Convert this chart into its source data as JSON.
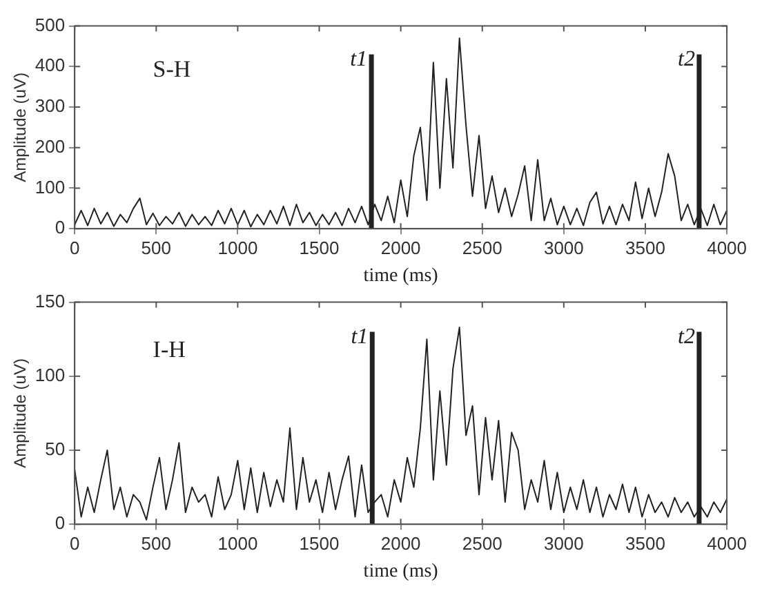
{
  "chart_data": [
    {
      "type": "line",
      "xlabel": "time (ms)",
      "ylabel": "Amplitude (uV)",
      "annotations": [
        "S-H"
      ],
      "xlim": [
        0,
        4000
      ],
      "xticks": [
        0,
        500,
        1000,
        1500,
        2000,
        2500,
        3000,
        3500,
        4000
      ],
      "ylim": [
        0,
        500
      ],
      "yticks": [
        0,
        100,
        200,
        300,
        400,
        500
      ],
      "grid": false,
      "legend": false,
      "marker": "none",
      "x": [
        0,
        40,
        80,
        120,
        160,
        200,
        240,
        280,
        320,
        360,
        400,
        440,
        480,
        520,
        560,
        600,
        640,
        680,
        720,
        760,
        800,
        840,
        880,
        920,
        960,
        1000,
        1040,
        1080,
        1120,
        1160,
        1200,
        1240,
        1280,
        1320,
        1360,
        1400,
        1440,
        1480,
        1520,
        1560,
        1600,
        1640,
        1680,
        1720,
        1760,
        1800,
        1840,
        1880,
        1920,
        1960,
        2000,
        2040,
        2080,
        2120,
        2160,
        2200,
        2240,
        2280,
        2320,
        2360,
        2400,
        2440,
        2480,
        2520,
        2560,
        2600,
        2640,
        2680,
        2720,
        2760,
        2800,
        2840,
        2880,
        2920,
        2960,
        3000,
        3040,
        3080,
        3120,
        3160,
        3200,
        3240,
        3280,
        3320,
        3360,
        3400,
        3440,
        3480,
        3520,
        3560,
        3600,
        3640,
        3680,
        3720,
        3760,
        3800,
        3840,
        3880,
        3920,
        3960,
        4000
      ],
      "series": [
        {
          "color": "#222222",
          "values": [
            10,
            45,
            8,
            50,
            12,
            40,
            6,
            35,
            15,
            50,
            75,
            10,
            38,
            8,
            30,
            12,
            40,
            6,
            35,
            10,
            30,
            8,
            45,
            12,
            50,
            10,
            45,
            5,
            35,
            10,
            45,
            12,
            55,
            8,
            60,
            15,
            40,
            8,
            35,
            10,
            40,
            8,
            50,
            15,
            55,
            10,
            60,
            20,
            80,
            15,
            120,
            30,
            180,
            250,
            70,
            410,
            100,
            370,
            150,
            470,
            255,
            80,
            230,
            50,
            130,
            40,
            100,
            30,
            85,
            155,
            20,
            170,
            20,
            75,
            10,
            55,
            10,
            50,
            8,
            65,
            90,
            12,
            55,
            10,
            60,
            20,
            115,
            25,
            100,
            30,
            90,
            185,
            130,
            20,
            60,
            10,
            50,
            8,
            60,
            10,
            45
          ]
        },
        {
          "name": "t1",
          "color": "#222222",
          "x": [
            1820,
            1820
          ],
          "values": [
            0,
            430
          ]
        },
        {
          "name": "t2",
          "color": "#222222",
          "x": [
            3830,
            3830
          ],
          "values": [
            0,
            430
          ]
        }
      ]
    },
    {
      "type": "line",
      "xlabel": "time (ms)",
      "ylabel": "Amplitude (uV)",
      "annotations": [
        "I-H"
      ],
      "xlim": [
        0,
        4000
      ],
      "xticks": [
        0,
        500,
        1000,
        1500,
        2000,
        2500,
        3000,
        3500,
        4000
      ],
      "ylim": [
        0,
        150
      ],
      "yticks": [
        0,
        50,
        100,
        150
      ],
      "grid": false,
      "legend": false,
      "marker": "none",
      "x": [
        0,
        40,
        80,
        120,
        160,
        200,
        240,
        280,
        320,
        360,
        400,
        440,
        480,
        520,
        560,
        600,
        640,
        680,
        720,
        760,
        800,
        840,
        880,
        920,
        960,
        1000,
        1040,
        1080,
        1120,
        1160,
        1200,
        1240,
        1280,
        1320,
        1360,
        1400,
        1440,
        1480,
        1520,
        1560,
        1600,
        1640,
        1680,
        1720,
        1760,
        1800,
        1840,
        1880,
        1920,
        1960,
        2000,
        2040,
        2080,
        2120,
        2160,
        2200,
        2240,
        2280,
        2320,
        2360,
        2400,
        2440,
        2480,
        2520,
        2560,
        2600,
        2640,
        2680,
        2720,
        2760,
        2800,
        2840,
        2880,
        2920,
        2960,
        3000,
        3040,
        3080,
        3120,
        3160,
        3200,
        3240,
        3280,
        3320,
        3360,
        3400,
        3440,
        3480,
        3520,
        3560,
        3600,
        3640,
        3680,
        3720,
        3760,
        3800,
        3840,
        3880,
        3920,
        3960,
        4000
      ],
      "series": [
        {
          "color": "#222222",
          "values": [
            37,
            5,
            25,
            8,
            30,
            50,
            10,
            25,
            5,
            20,
            15,
            3,
            25,
            45,
            10,
            30,
            55,
            8,
            25,
            15,
            20,
            5,
            32,
            10,
            20,
            43,
            10,
            38,
            8,
            35,
            12,
            30,
            15,
            65,
            10,
            45,
            15,
            30,
            8,
            35,
            10,
            30,
            46,
            5,
            40,
            8,
            15,
            20,
            5,
            30,
            15,
            45,
            25,
            65,
            125,
            30,
            90,
            40,
            105,
            133,
            60,
            80,
            20,
            72,
            30,
            70,
            15,
            62,
            50,
            10,
            30,
            15,
            43,
            10,
            35,
            8,
            25,
            10,
            30,
            8,
            25,
            5,
            20,
            10,
            27,
            8,
            25,
            5,
            20,
            8,
            15,
            5,
            18,
            8,
            15,
            5,
            12,
            5,
            15,
            8,
            17
          ]
        },
        {
          "name": "t1",
          "color": "#222222",
          "x": [
            1825,
            1825
          ],
          "values": [
            0,
            130
          ]
        },
        {
          "name": "t2",
          "color": "#222222",
          "x": [
            3830,
            3830
          ],
          "values": [
            0,
            130
          ]
        }
      ]
    }
  ]
}
